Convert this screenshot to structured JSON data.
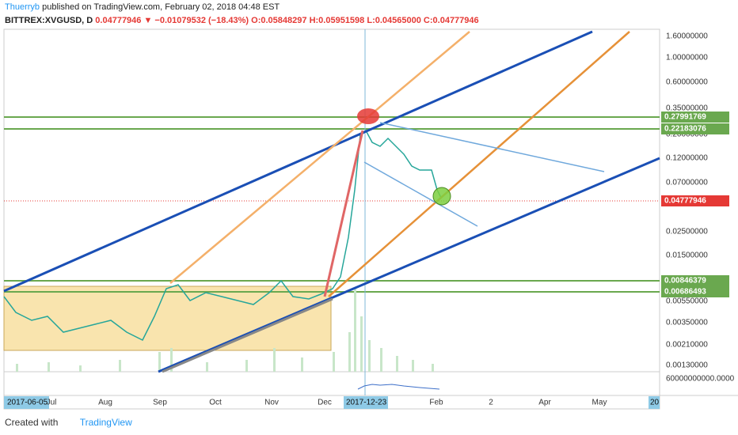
{
  "header": {
    "author": "Thuerryb",
    "published": "published on TradingView.com, February 02, 2018 04:48 EST",
    "symbol": "BITTREX:XVGUSD, D",
    "last": "0.04777946",
    "change": "▼ −0.01079532 (−18.43%)",
    "open": "O:0.05848297",
    "high": "H:0.05951598",
    "low": "L:0.04565000",
    "close": "C:0.04777946"
  },
  "price_axis": {
    "labels": [
      "1.60000000",
      "1.00000000",
      "0.60000000",
      "0.35000000",
      "0.20000000",
      "0.12000000",
      "0.07000000",
      "0.02500000",
      "0.01500000",
      "0.00550000",
      "0.00350000",
      "0.00210000",
      "0.00130000"
    ],
    "green_levels": [
      "0.27991769",
      "0.22183076",
      "0.00846379",
      "0.00686493"
    ],
    "current": "0.04777946",
    "volume_label": "60000000000.0000"
  },
  "time_axis": {
    "start": "2017-06-05",
    "labels": [
      "Jul",
      "Aug",
      "Sep",
      "Oct",
      "Nov",
      "Dec",
      "Feb",
      "2",
      "Apr",
      "May"
    ],
    "cursor": "2017-12-23",
    "end": "20"
  },
  "footer": {
    "created": "Created with",
    "brand": "TradingView"
  }
}
